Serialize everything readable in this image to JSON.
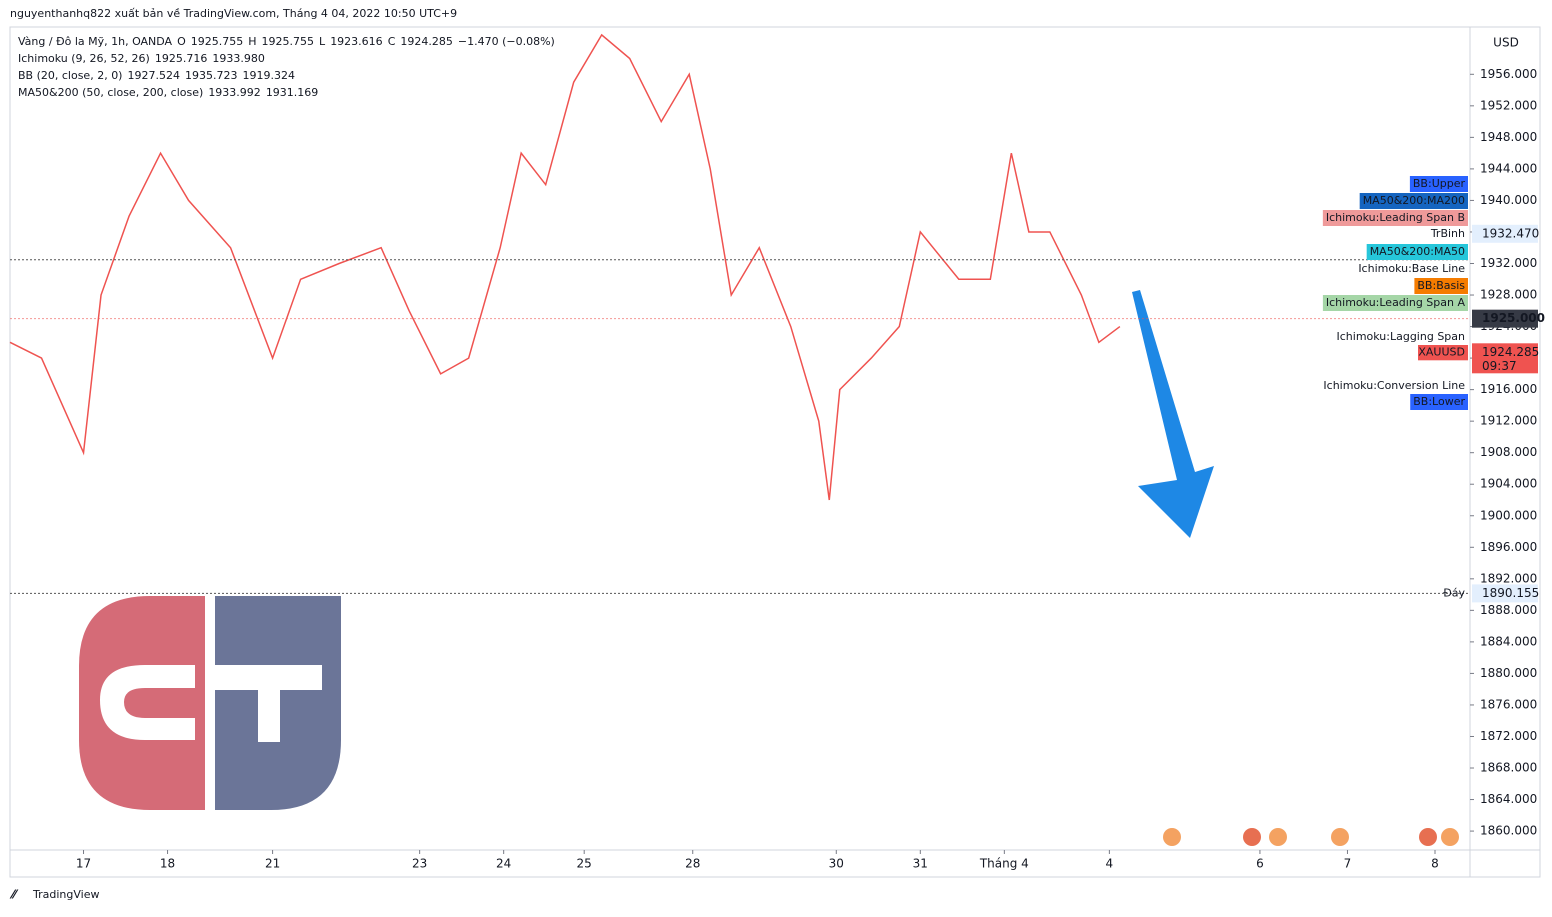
{
  "header": {
    "publisher": "nguyenthanhq822 xuất bản về TradingView.com, Tháng 4 04, 2022 10:50 UTC+9"
  },
  "legend": [
    [
      "Vàng / Đô la Mỹ, 1h, OANDA",
      "O",
      "1925.755",
      "H",
      "1925.755",
      "L",
      "1923.616",
      "C",
      "1924.285",
      "−1.470 (−0.08%)"
    ],
    [
      "Ichimoku (9, 26, 52, 26)",
      "1925.716",
      "1933.980"
    ],
    [
      "BB (20, close, 2, 0)",
      "1927.524",
      "1935.723",
      "1919.324"
    ],
    [
      "MA50&200 (50, close, 200, close)",
      "1933.992",
      "1931.169"
    ]
  ],
  "indicator_tags": [
    {
      "text": "BB:Upper",
      "color": "#ffffff",
      "bg": "#2962ff"
    },
    {
      "text": "MA50&200:MA200",
      "color": "#ffffff",
      "bg": "#1565c0"
    },
    {
      "text": "Ichimoku:Leading Span B",
      "color": "#131722",
      "bg": "#ef9a9a"
    },
    {
      "text": "MA50&200:MA50",
      "color": "#131722",
      "bg": "#26c6da"
    },
    {
      "text": "Ichimoku:Base Line",
      "color": "#131722",
      "bg": "#ffffff"
    },
    {
      "text": "BB:Basis",
      "color": "#ffffff",
      "bg": "#f57c00"
    },
    {
      "text": "Ichimoku:Leading Span A",
      "color": "#131722",
      "bg": "#a5d6a7"
    },
    {
      "text": "Ichimoku:Lagging Span",
      "color": "#131722",
      "bg": "#ffffff"
    },
    {
      "text": "Ichimoku:Conversion Line",
      "color": "#131722",
      "bg": "#ffffff"
    },
    {
      "text": "BB:Lower",
      "color": "#ffffff",
      "bg": "#2962ff"
    }
  ],
  "chart_data": {
    "type": "line",
    "currency": "USD",
    "xlim": [
      0,
      417
    ],
    "xticks": [
      {
        "value": 21,
        "label": "17"
      },
      {
        "value": 45,
        "label": "18"
      },
      {
        "value": 75,
        "label": "21"
      },
      {
        "value": 117,
        "label": "23"
      },
      {
        "value": 141,
        "label": "24"
      },
      {
        "value": 164,
        "label": "25"
      },
      {
        "value": 195,
        "label": "28"
      },
      {
        "value": 236,
        "label": "30"
      },
      {
        "value": 260,
        "label": "31"
      },
      {
        "value": 284,
        "label": "Tháng 4"
      },
      {
        "value": 314,
        "label": "4"
      },
      {
        "value": 357,
        "label": "6"
      },
      {
        "value": 382,
        "label": "7"
      },
      {
        "value": 407,
        "label": "8"
      }
    ],
    "ylim": [
      1857.6,
      1962.0
    ],
    "yticks": [
      {
        "value": 1956,
        "label": "1956.000"
      },
      {
        "value": 1952,
        "label": "1952.000"
      },
      {
        "value": 1948,
        "label": "1948.000"
      },
      {
        "value": 1944,
        "label": "1944.000"
      },
      {
        "value": 1940,
        "label": "1940.000"
      },
      {
        "value": 1936,
        "label": "1936.000"
      },
      {
        "value": 1932,
        "label": "1932.000"
      },
      {
        "value": 1928,
        "label": "1928.000"
      },
      {
        "value": 1924,
        "label": "1924.000"
      },
      {
        "value": 1920,
        "label": "1920.000"
      },
      {
        "value": 1916,
        "label": "1916.000"
      },
      {
        "value": 1912,
        "label": "1912.000"
      },
      {
        "value": 1908,
        "label": "1908.000"
      },
      {
        "value": 1904,
        "label": "1904.000"
      },
      {
        "value": 1900,
        "label": "1900.000"
      },
      {
        "value": 1896,
        "label": "1896.000"
      },
      {
        "value": 1892,
        "label": "1892.000"
      },
      {
        "value": 1888,
        "label": "1888.000"
      },
      {
        "value": 1884,
        "label": "1884.000"
      },
      {
        "value": 1880,
        "label": "1880.000"
      },
      {
        "value": 1876,
        "label": "1876.000"
      },
      {
        "value": 1872,
        "label": "1872.000"
      },
      {
        "value": 1868,
        "label": "1868.000"
      },
      {
        "value": 1864,
        "label": "1864.000"
      },
      {
        "value": 1860,
        "label": "1860.000"
      }
    ],
    "grid": false,
    "series": [
      {
        "name": "XAUUSD",
        "color": "#ef5350",
        "x": [
          0,
          9,
          21,
          26,
          34,
          43,
          51,
          63,
          75,
          83,
          94,
          106,
          114,
          123,
          131,
          140,
          146,
          153,
          161,
          169,
          177,
          186,
          194,
          200,
          206,
          214,
          223,
          231,
          234,
          237,
          246,
          254,
          260,
          271,
          280,
          286,
          291,
          297,
          306,
          311,
          317
        ],
        "values": [
          1922,
          1920,
          1908,
          1928,
          1938,
          1946,
          1940,
          1934,
          1920,
          1930,
          1932,
          1934,
          1926,
          1918,
          1920,
          1934,
          1946,
          1942,
          1955,
          1961,
          1958,
          1950,
          1956,
          1944,
          1928,
          1934,
          1924,
          1912,
          1902,
          1916,
          1920,
          1924,
          1936,
          1930,
          1930,
          1946,
          1936,
          1936,
          1928,
          1922,
          1924
        ]
      }
    ],
    "markers": [
      {
        "label": "TrBinh",
        "value": 1932.47,
        "value_label": "1932.470"
      },
      {
        "label": "Đáy",
        "value": 1890.155,
        "value_label": "1890.155"
      }
    ],
    "crosshair": {
      "value": 1925,
      "label": "1925.000"
    },
    "last_price": {
      "value": 1924.285,
      "value_label": "1924.285",
      "countdown": "09:37"
    }
  },
  "footer": {
    "brand": "TradingView"
  }
}
